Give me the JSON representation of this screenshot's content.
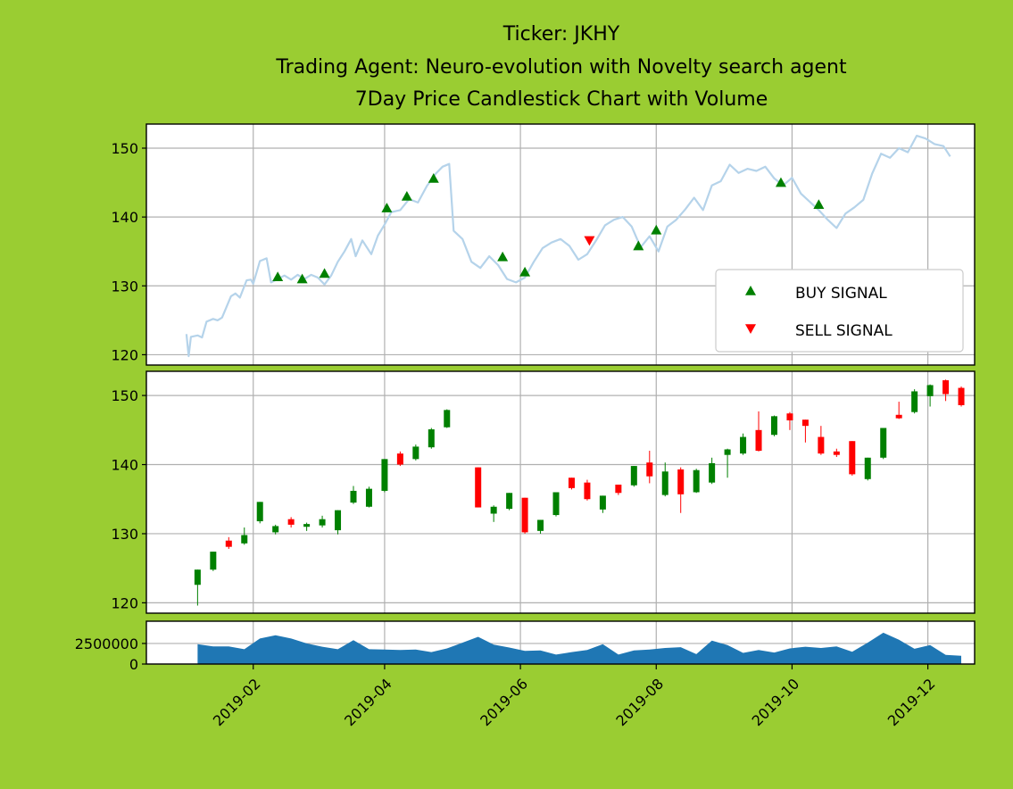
{
  "title": {
    "line1": "Ticker: JKHY",
    "line2": "Trading Agent: Neuro-evolution with Novelty search agent",
    "line3": "7Day Price Candlestick Chart with Volume"
  },
  "legend": {
    "buy_label": "BUY SIGNAL",
    "sell_label": "SELL SIGNAL",
    "placement": "lower-right"
  },
  "colors": {
    "background": "#9acd32",
    "line": "#b5d3ea",
    "buy": "#008000",
    "sell": "#ff0000",
    "up_candle": "#008000",
    "down_candle": "#ff0000",
    "volume": "#1f77b4"
  },
  "chart_data": [
    {
      "type": "line",
      "name": "price-with-signals",
      "xlim": [
        "2018-12-15",
        "2019-12-22"
      ],
      "ylim": [
        118.5,
        153.5
      ],
      "grid": true,
      "yticks": [
        120,
        130,
        140,
        150
      ],
      "price": [
        [
          "2019-01-02",
          123.0
        ],
        [
          "2019-01-03",
          119.8
        ],
        [
          "2019-01-04",
          122.6
        ],
        [
          "2019-01-07",
          122.8
        ],
        [
          "2019-01-09",
          122.5
        ],
        [
          "2019-01-11",
          124.8
        ],
        [
          "2019-01-14",
          125.2
        ],
        [
          "2019-01-16",
          125.0
        ],
        [
          "2019-01-18",
          125.4
        ],
        [
          "2019-01-22",
          128.5
        ],
        [
          "2019-01-24",
          128.9
        ],
        [
          "2019-01-26",
          128.3
        ],
        [
          "2019-01-29",
          130.8
        ],
        [
          "2019-01-31",
          130.9
        ],
        [
          "2019-02-01",
          130.3
        ],
        [
          "2019-02-04",
          133.6
        ],
        [
          "2019-02-07",
          134.0
        ],
        [
          "2019-02-09",
          130.5
        ],
        [
          "2019-02-12",
          131.0
        ],
        [
          "2019-02-15",
          131.5
        ],
        [
          "2019-02-18",
          130.9
        ],
        [
          "2019-02-21",
          131.6
        ],
        [
          "2019-02-24",
          131.0
        ],
        [
          "2019-02-27",
          131.6
        ],
        [
          "2019-03-02",
          131.2
        ],
        [
          "2019-03-05",
          130.2
        ],
        [
          "2019-03-08",
          131.5
        ],
        [
          "2019-03-11",
          133.5
        ],
        [
          "2019-03-14",
          135.0
        ],
        [
          "2019-03-17",
          136.8
        ],
        [
          "2019-03-19",
          134.3
        ],
        [
          "2019-03-22",
          136.6
        ],
        [
          "2019-03-26",
          134.6
        ],
        [
          "2019-03-29",
          137.3
        ],
        [
          "2019-04-01",
          138.9
        ],
        [
          "2019-04-04",
          140.7
        ],
        [
          "2019-04-08",
          141.0
        ],
        [
          "2019-04-12",
          142.6
        ],
        [
          "2019-04-16",
          142.1
        ],
        [
          "2019-04-20",
          144.5
        ],
        [
          "2019-04-24",
          146.3
        ],
        [
          "2019-04-27",
          147.3
        ],
        [
          "2019-04-30",
          147.7
        ],
        [
          "2019-05-02",
          138.0
        ],
        [
          "2019-05-06",
          136.8
        ],
        [
          "2019-05-10",
          133.5
        ],
        [
          "2019-05-14",
          132.6
        ],
        [
          "2019-05-18",
          134.3
        ],
        [
          "2019-05-22",
          133.0
        ],
        [
          "2019-05-26",
          131.0
        ],
        [
          "2019-05-30",
          130.5
        ],
        [
          "2019-06-03",
          131.2
        ],
        [
          "2019-06-07",
          133.5
        ],
        [
          "2019-06-11",
          135.5
        ],
        [
          "2019-06-15",
          136.3
        ],
        [
          "2019-06-19",
          136.8
        ],
        [
          "2019-06-23",
          135.8
        ],
        [
          "2019-06-27",
          133.8
        ],
        [
          "2019-07-01",
          134.6
        ],
        [
          "2019-07-05",
          136.6
        ],
        [
          "2019-07-09",
          138.8
        ],
        [
          "2019-07-13",
          139.6
        ],
        [
          "2019-07-17",
          140.0
        ],
        [
          "2019-07-21",
          138.6
        ],
        [
          "2019-07-25",
          135.6
        ],
        [
          "2019-07-29",
          137.2
        ],
        [
          "2019-08-02",
          135.0
        ],
        [
          "2019-08-06",
          138.6
        ],
        [
          "2019-08-10",
          139.6
        ],
        [
          "2019-08-14",
          141.1
        ],
        [
          "2019-08-18",
          142.8
        ],
        [
          "2019-08-22",
          141.0
        ],
        [
          "2019-08-26",
          144.6
        ],
        [
          "2019-08-30",
          145.2
        ],
        [
          "2019-09-03",
          147.6
        ],
        [
          "2019-09-07",
          146.4
        ],
        [
          "2019-09-11",
          147.0
        ],
        [
          "2019-09-15",
          146.7
        ],
        [
          "2019-09-19",
          147.3
        ],
        [
          "2019-09-23",
          145.6
        ],
        [
          "2019-09-27",
          144.6
        ],
        [
          "2019-10-01",
          145.7
        ],
        [
          "2019-10-05",
          143.4
        ],
        [
          "2019-10-09",
          142.2
        ],
        [
          "2019-10-13",
          141.0
        ],
        [
          "2019-10-17",
          139.6
        ],
        [
          "2019-10-21",
          138.4
        ],
        [
          "2019-10-25",
          140.5
        ],
        [
          "2019-10-29",
          141.4
        ],
        [
          "2019-11-02",
          142.5
        ],
        [
          "2019-11-06",
          146.3
        ],
        [
          "2019-11-10",
          149.2
        ],
        [
          "2019-11-14",
          148.6
        ],
        [
          "2019-11-18",
          150.0
        ],
        [
          "2019-11-22",
          149.4
        ],
        [
          "2019-11-26",
          151.8
        ],
        [
          "2019-11-30",
          151.4
        ],
        [
          "2019-12-04",
          150.6
        ],
        [
          "2019-12-08",
          150.3
        ],
        [
          "2019-12-11",
          148.8
        ]
      ],
      "buy_signals": [
        [
          "2019-02-12",
          131.3
        ],
        [
          "2019-02-23",
          131.0
        ],
        [
          "2019-03-05",
          131.8
        ],
        [
          "2019-04-02",
          141.3
        ],
        [
          "2019-04-11",
          143.0
        ],
        [
          "2019-04-23",
          145.6
        ],
        [
          "2019-05-24",
          134.2
        ],
        [
          "2019-06-03",
          132.0
        ],
        [
          "2019-07-24",
          135.8
        ],
        [
          "2019-08-01",
          138.1
        ],
        [
          "2019-09-26",
          145.0
        ],
        [
          "2019-10-13",
          141.8
        ]
      ],
      "sell_signals": [
        [
          "2019-07-02",
          136.6
        ]
      ]
    },
    {
      "type": "candlestick",
      "name": "7-day-candles",
      "ylim": [
        118.5,
        153.5
      ],
      "grid": true,
      "yticks": [
        120,
        130,
        140,
        150
      ],
      "candles": [
        [
          "2019-01-07",
          122.6,
          124.8,
          119.6,
          124.8
        ],
        [
          "2019-01-14",
          124.8,
          127.4,
          124.6,
          127.4
        ],
        [
          "2019-01-21",
          129.0,
          128.1,
          127.8,
          129.5
        ],
        [
          "2019-01-28",
          128.6,
          129.8,
          128.4,
          130.9
        ],
        [
          "2019-02-04",
          131.8,
          134.6,
          131.5,
          134.6
        ],
        [
          "2019-02-11",
          130.2,
          131.1,
          129.9,
          131.3
        ],
        [
          "2019-02-18",
          132.1,
          131.3,
          130.9,
          132.4
        ],
        [
          "2019-02-25",
          131.0,
          131.4,
          130.4,
          131.6
        ],
        [
          "2019-03-04",
          131.2,
          132.1,
          130.9,
          132.6
        ],
        [
          "2019-03-11",
          130.5,
          133.4,
          129.9,
          133.4
        ],
        [
          "2019-03-18",
          134.5,
          136.2,
          134.3,
          136.9
        ],
        [
          "2019-03-25",
          133.9,
          136.5,
          133.8,
          136.8
        ],
        [
          "2019-04-01",
          136.2,
          140.8,
          136.0,
          140.8
        ],
        [
          "2019-04-08",
          141.6,
          140.0,
          139.8,
          141.9
        ],
        [
          "2019-04-15",
          140.8,
          142.6,
          140.6,
          142.9
        ],
        [
          "2019-04-22",
          142.5,
          145.1,
          142.3,
          145.3
        ],
        [
          "2019-04-29",
          145.4,
          147.9,
          145.3,
          148.0
        ],
        [
          "2019-05-13",
          139.6,
          133.8,
          133.8,
          139.6
        ],
        [
          "2019-05-20",
          132.9,
          133.9,
          131.7,
          134.1
        ],
        [
          "2019-05-27",
          133.6,
          135.9,
          133.4,
          135.9
        ],
        [
          "2019-06-03",
          135.2,
          130.2,
          130.0,
          135.2
        ],
        [
          "2019-06-10",
          130.4,
          132.0,
          130.0,
          132.0
        ],
        [
          "2019-06-17",
          132.7,
          136.0,
          132.5,
          136.0
        ],
        [
          "2019-06-24",
          138.1,
          136.6,
          136.4,
          138.1
        ],
        [
          "2019-07-01",
          137.4,
          135.0,
          134.8,
          137.8
        ],
        [
          "2019-07-08",
          133.5,
          135.5,
          133.0,
          135.5
        ],
        [
          "2019-07-15",
          137.1,
          135.9,
          135.6,
          137.1
        ],
        [
          "2019-07-22",
          137.0,
          139.8,
          136.8,
          139.8
        ],
        [
          "2019-07-29",
          140.3,
          138.3,
          137.3,
          142.0
        ],
        [
          "2019-08-05",
          135.6,
          139.0,
          135.4,
          140.3
        ],
        [
          "2019-08-12",
          139.3,
          135.7,
          133.0,
          139.6
        ],
        [
          "2019-08-19",
          136.0,
          139.2,
          135.9,
          139.4
        ],
        [
          "2019-08-26",
          137.4,
          140.2,
          137.2,
          141.0
        ],
        [
          "2019-09-02",
          141.4,
          142.2,
          138.1,
          142.3
        ],
        [
          "2019-09-09",
          141.6,
          144.0,
          141.4,
          144.5
        ],
        [
          "2019-09-16",
          145.0,
          142.0,
          141.9,
          147.7
        ],
        [
          "2019-09-23",
          144.3,
          147.0,
          144.1,
          147.1
        ],
        [
          "2019-09-30",
          147.4,
          146.4,
          145.0,
          147.6
        ],
        [
          "2019-10-07",
          146.5,
          145.6,
          143.2,
          146.5
        ],
        [
          "2019-10-14",
          144.0,
          141.6,
          141.4,
          145.6
        ],
        [
          "2019-10-21",
          141.9,
          141.4,
          141.1,
          142.3
        ],
        [
          "2019-10-28",
          143.4,
          138.6,
          138.4,
          143.4
        ],
        [
          "2019-11-04",
          137.9,
          141.0,
          137.7,
          141.0
        ],
        [
          "2019-11-11",
          141.0,
          145.3,
          140.8,
          145.3
        ],
        [
          "2019-11-18",
          147.2,
          146.7,
          146.6,
          149.1
        ],
        [
          "2019-11-25",
          147.6,
          150.6,
          147.4,
          150.9
        ],
        [
          "2019-12-02",
          149.9,
          151.5,
          148.4,
          151.6
        ],
        [
          "2019-12-09",
          152.2,
          150.2,
          149.2,
          152.3
        ],
        [
          "2019-12-16",
          151.1,
          148.6,
          148.4,
          151.3
        ]
      ]
    },
    {
      "type": "area",
      "name": "volume",
      "ylim": [
        0,
        5200000
      ],
      "grid": true,
      "yticks": [
        0,
        2500000
      ],
      "x_tick_labels": [
        "2019-02",
        "2019-04",
        "2019-06",
        "2019-08",
        "2019-10",
        "2019-12"
      ],
      "volume": [
        [
          "2019-01-07",
          2400000
        ],
        [
          "2019-01-14",
          2150000
        ],
        [
          "2019-01-21",
          2150000
        ],
        [
          "2019-01-28",
          1800000
        ],
        [
          "2019-02-04",
          3100000
        ],
        [
          "2019-02-11",
          3500000
        ],
        [
          "2019-02-18",
          3100000
        ],
        [
          "2019-02-25",
          2500000
        ],
        [
          "2019-03-04",
          2100000
        ],
        [
          "2019-03-11",
          1800000
        ],
        [
          "2019-03-18",
          2900000
        ],
        [
          "2019-03-25",
          1800000
        ],
        [
          "2019-04-01",
          1750000
        ],
        [
          "2019-04-08",
          1700000
        ],
        [
          "2019-04-15",
          1750000
        ],
        [
          "2019-04-22",
          1450000
        ],
        [
          "2019-04-29",
          1900000
        ],
        [
          "2019-05-13",
          3300000
        ],
        [
          "2019-05-20",
          2350000
        ],
        [
          "2019-05-27",
          2000000
        ],
        [
          "2019-06-03",
          1600000
        ],
        [
          "2019-06-10",
          1650000
        ],
        [
          "2019-06-17",
          1150000
        ],
        [
          "2019-06-24",
          1450000
        ],
        [
          "2019-07-01",
          1700000
        ],
        [
          "2019-07-08",
          2400000
        ],
        [
          "2019-07-15",
          1150000
        ],
        [
          "2019-07-22",
          1650000
        ],
        [
          "2019-07-29",
          1750000
        ],
        [
          "2019-08-05",
          1950000
        ],
        [
          "2019-08-12",
          2050000
        ],
        [
          "2019-08-19",
          1200000
        ],
        [
          "2019-08-26",
          2850000
        ],
        [
          "2019-09-02",
          2300000
        ],
        [
          "2019-09-09",
          1350000
        ],
        [
          "2019-09-16",
          1700000
        ],
        [
          "2019-09-23",
          1400000
        ],
        [
          "2019-09-30",
          1900000
        ],
        [
          "2019-10-07",
          2100000
        ],
        [
          "2019-10-14",
          1950000
        ],
        [
          "2019-10-21",
          2150000
        ],
        [
          "2019-10-28",
          1500000
        ],
        [
          "2019-11-04",
          2600000
        ],
        [
          "2019-11-11",
          3800000
        ],
        [
          "2019-11-18",
          2950000
        ],
        [
          "2019-11-25",
          1850000
        ],
        [
          "2019-12-02",
          2300000
        ],
        [
          "2019-12-09",
          1100000
        ],
        [
          "2019-12-16",
          1000000
        ]
      ]
    }
  ]
}
